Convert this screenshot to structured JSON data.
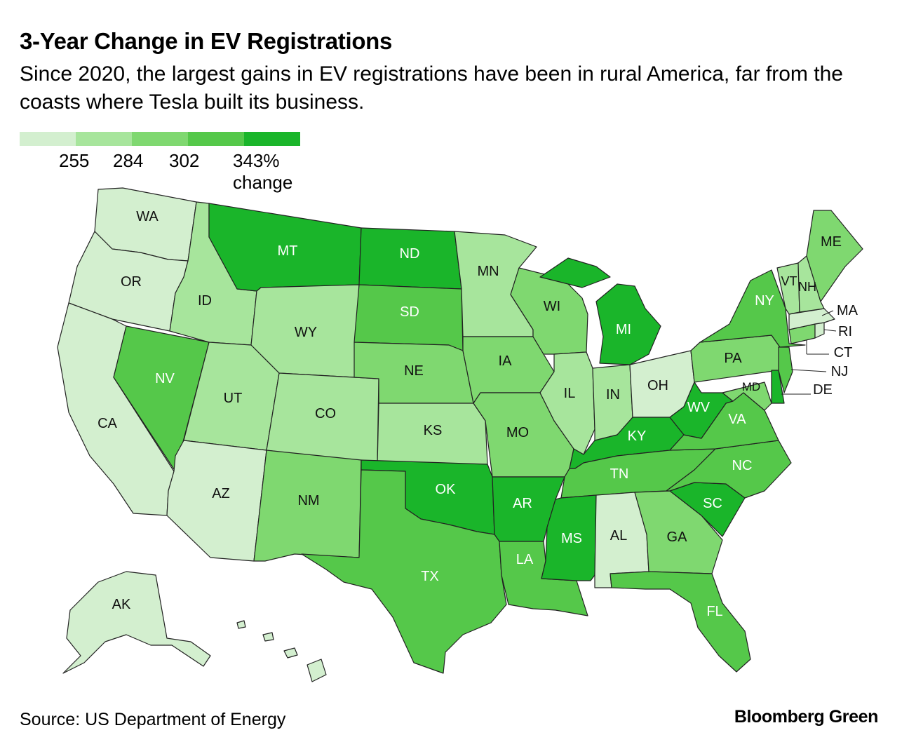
{
  "title": "3-Year Change in EV Registrations",
  "subtitle": "Since 2020, the largest gains in EV registrations have been in rural America, far from the coasts where Tesla built its business.",
  "legend": {
    "colors": [
      "#d3efcf",
      "#a7e59c",
      "#7fd870",
      "#55c84a",
      "#1ab52a"
    ],
    "ticks": [
      "255",
      "284",
      "302",
      "343% change"
    ]
  },
  "map": {
    "tier_colors": [
      "#d3efcf",
      "#a7e59c",
      "#7fd870",
      "#55c84a",
      "#1ab52a"
    ],
    "states": {
      "WA": {
        "label": "WA",
        "tier": 0
      },
      "OR": {
        "label": "OR",
        "tier": 0
      },
      "CA": {
        "label": "CA",
        "tier": 0
      },
      "AZ": {
        "label": "AZ",
        "tier": 0
      },
      "OH": {
        "label": "OH",
        "tier": 0
      },
      "AL": {
        "label": "AL",
        "tier": 0
      },
      "AK": {
        "label": "AK",
        "tier": 0
      },
      "HI": {
        "label": "",
        "tier": 0
      },
      "ID": {
        "label": "ID",
        "tier": 1
      },
      "UT": {
        "label": "UT",
        "tier": 1
      },
      "WY": {
        "label": "WY",
        "tier": 1
      },
      "CO": {
        "label": "CO",
        "tier": 1
      },
      "KS": {
        "label": "KS",
        "tier": 1
      },
      "MN": {
        "label": "MN",
        "tier": 1
      },
      "WI": {
        "label": "WI",
        "tier": 2
      },
      "IL": {
        "label": "IL",
        "tier": 1
      },
      "IN": {
        "label": "IN",
        "tier": 1
      },
      "NM": {
        "label": "NM",
        "tier": 2
      },
      "NE": {
        "label": "NE",
        "tier": 2
      },
      "IA": {
        "label": "IA",
        "tier": 2
      },
      "MO": {
        "label": "MO",
        "tier": 2
      },
      "GA": {
        "label": "GA",
        "tier": 2
      },
      "PA": {
        "label": "PA",
        "tier": 2
      },
      "ME": {
        "label": "ME",
        "tier": 2
      },
      "VT": {
        "label": "VT",
        "tier": 1
      },
      "NH": {
        "label": "NH",
        "tier": 1
      },
      "MA": {
        "label": "MA",
        "tier": 0
      },
      "RI": {
        "label": "RI",
        "tier": 0
      },
      "CT": {
        "label": "CT",
        "tier": 2
      },
      "MD": {
        "label": "MD",
        "tier": 2
      },
      "NV": {
        "label": "NV",
        "tier": 3
      },
      "SD": {
        "label": "SD",
        "tier": 3
      },
      "TX": {
        "label": "TX",
        "tier": 3
      },
      "LA": {
        "label": "LA",
        "tier": 3
      },
      "TN": {
        "label": "TN",
        "tier": 3
      },
      "NC": {
        "label": "NC",
        "tier": 3
      },
      "VA": {
        "label": "VA",
        "tier": 3
      },
      "NY": {
        "label": "NY",
        "tier": 3
      },
      "FL": {
        "label": "FL",
        "tier": 3
      },
      "NJ": {
        "label": "NJ",
        "tier": 3
      },
      "MT": {
        "label": "MT",
        "tier": 4
      },
      "ND": {
        "label": "ND",
        "tier": 4
      },
      "OK": {
        "label": "OK",
        "tier": 4
      },
      "AR": {
        "label": "AR",
        "tier": 4
      },
      "MS": {
        "label": "MS",
        "tier": 4
      },
      "MI": {
        "label": "MI",
        "tier": 4
      },
      "KY": {
        "label": "KY",
        "tier": 4
      },
      "WV": {
        "label": "WV",
        "tier": 4
      },
      "SC": {
        "label": "SC",
        "tier": 4
      },
      "DE": {
        "label": "DE",
        "tier": 4
      }
    }
  },
  "source": "Source: US Department of Energy",
  "brand": "Bloomberg Green"
}
